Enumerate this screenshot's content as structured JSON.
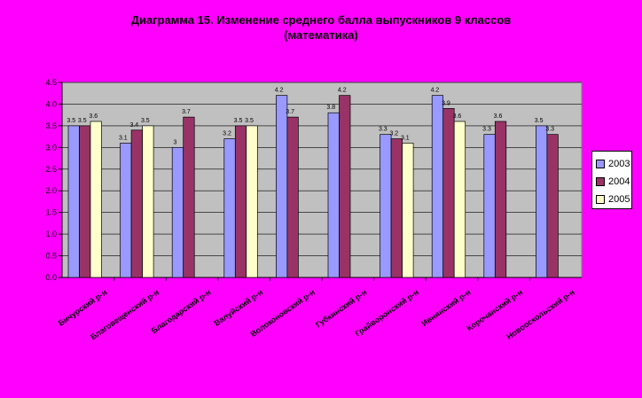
{
  "chart_data": {
    "type": "bar",
    "title_line1": "Диаграмма 15. Изменение среднего балла выпускников 9 классов",
    "title_line2": "(математика)",
    "ylim": [
      0,
      4.5
    ],
    "yticks": [
      "0.0",
      "0.5",
      "1.0",
      "1.5",
      "2.0",
      "2.5",
      "3.0",
      "3.5",
      "4.0",
      "4.5"
    ],
    "categories": [
      "Бичурский р-н",
      "Благовещенский р-н",
      "Благодарский р-н",
      "Валуйский р-н",
      "Волоконовский р-н",
      "Губкинский р-н",
      "Грайворонский р-н",
      "Ивнянский р-н",
      "Корочанский р-н",
      "Новооскольский р-н"
    ],
    "series": [
      {
        "name": "2003",
        "color": "#9999ff",
        "values": [
          3.5,
          3.1,
          3.0,
          3.2,
          4.2,
          3.8,
          3.3,
          4.2,
          3.3,
          3.5
        ]
      },
      {
        "name": "2004",
        "color": "#993366",
        "values": [
          3.5,
          3.4,
          3.7,
          3.5,
          3.7,
          4.2,
          3.2,
          3.9,
          3.6,
          3.3
        ]
      },
      {
        "name": "2005",
        "color": "#ffffcc",
        "values": [
          3.6,
          3.5,
          null,
          3.5,
          null,
          null,
          3.1,
          3.6,
          null,
          null
        ]
      }
    ],
    "grid": true,
    "legend": "right"
  }
}
